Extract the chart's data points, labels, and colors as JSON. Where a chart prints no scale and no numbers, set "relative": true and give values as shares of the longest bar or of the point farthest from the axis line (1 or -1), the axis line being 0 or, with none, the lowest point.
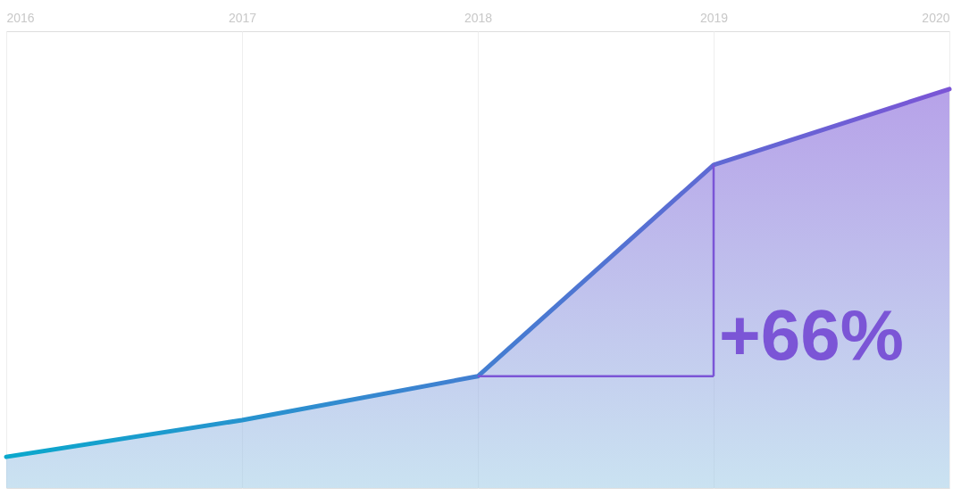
{
  "chart_data": {
    "type": "area",
    "relative": true,
    "x": [
      2016,
      2017,
      2018,
      2019,
      2020
    ],
    "xlim": [
      2016,
      2020
    ],
    "xticks": [
      2016,
      2017,
      2018,
      2019,
      2020
    ],
    "series": [
      {
        "color": "#7b55d6",
        "values": [
          0.078,
          0.17,
          0.28,
          0.81,
          1
        ]
      }
    ],
    "grid": "x",
    "annotations": [
      "+66%"
    ]
  }
}
